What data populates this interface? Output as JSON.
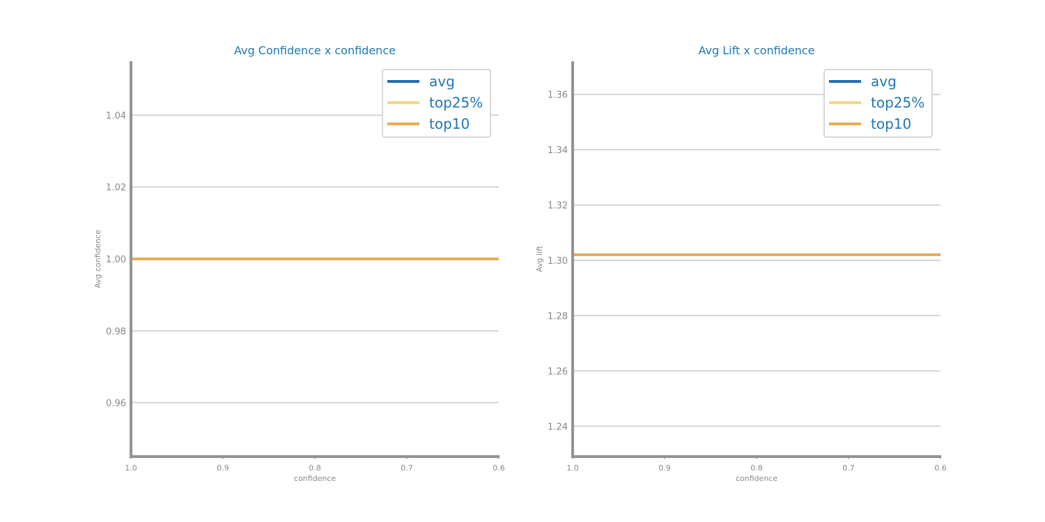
{
  "colors": {
    "avg": "#1f6fb0",
    "top25": "#f2d47a",
    "top10": "#e8ad55",
    "axis": "#939393",
    "grid": "#cccccc",
    "text_accent": "#1f77b4",
    "tick_text": "#888888"
  },
  "chart_data": [
    {
      "type": "line",
      "title": "Avg Confidence x confidence",
      "xlabel": "confidence",
      "ylabel": "Avg confidence",
      "xlim": [
        1.0,
        0.6
      ],
      "ylim": [
        0.945,
        1.055
      ],
      "x_ticks": [
        1.0,
        0.9,
        0.8,
        0.7,
        0.6
      ],
      "x_tick_labels": [
        "1.0",
        "0.9",
        "0.8",
        "0.7",
        "0.6"
      ],
      "y_ticks": [
        0.96,
        0.98,
        1.0,
        1.02,
        1.04
      ],
      "y_tick_labels": [
        "0.96",
        "0.98",
        "1.00",
        "1.02",
        "1.04"
      ],
      "grid": "horizontal",
      "legend_position": "top-right",
      "x": [
        1.0,
        0.6
      ],
      "series": [
        {
          "name": "avg",
          "color_key": "avg",
          "values": [
            1.0,
            1.0
          ]
        },
        {
          "name": "top25%",
          "color_key": "top25",
          "values": [
            1.0,
            1.0
          ]
        },
        {
          "name": "top10",
          "color_key": "top10",
          "values": [
            1.0,
            1.0
          ]
        }
      ]
    },
    {
      "type": "line",
      "title": "Avg Lift x confidence",
      "xlabel": "confidence",
      "ylabel": "Avg lift",
      "xlim": [
        1.0,
        0.6
      ],
      "ylim": [
        1.229,
        1.372
      ],
      "x_ticks": [
        1.0,
        0.9,
        0.8,
        0.7,
        0.6
      ],
      "x_tick_labels": [
        "1.0",
        "0.9",
        "0.8",
        "0.7",
        "0.6"
      ],
      "y_ticks": [
        1.24,
        1.26,
        1.28,
        1.3,
        1.32,
        1.34,
        1.36
      ],
      "y_tick_labels": [
        "1.24",
        "1.26",
        "1.28",
        "1.30",
        "1.32",
        "1.34",
        "1.36"
      ],
      "grid": "horizontal",
      "legend_position": "top-right",
      "x": [
        1.0,
        0.6
      ],
      "series": [
        {
          "name": "avg",
          "color_key": "avg",
          "values": [
            1.302,
            1.302
          ]
        },
        {
          "name": "top25%",
          "color_key": "top25",
          "values": [
            1.302,
            1.302
          ]
        },
        {
          "name": "top10",
          "color_key": "top10",
          "values": [
            1.302,
            1.302
          ]
        }
      ]
    }
  ]
}
